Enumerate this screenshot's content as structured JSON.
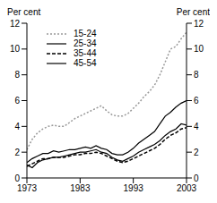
{
  "chart_data": {
    "type": "line",
    "y_label": "Per cent",
    "y2_label": "Per cent",
    "x": [
      1973,
      1974,
      1975,
      1976,
      1977,
      1978,
      1979,
      1980,
      1981,
      1982,
      1983,
      1984,
      1985,
      1986,
      1987,
      1988,
      1989,
      1990,
      1991,
      1992,
      1993,
      1994,
      1995,
      1996,
      1997,
      1998,
      1999,
      2000,
      2001,
      2002,
      2003
    ],
    "xlim": [
      1973,
      2003
    ],
    "xticks": [
      1973,
      1983,
      1993,
      2003
    ],
    "ylim": [
      0,
      12
    ],
    "yticks": [
      0,
      2,
      4,
      6,
      8,
      10,
      12
    ],
    "y2lim": [
      0,
      12
    ],
    "y2ticks": [
      0,
      2,
      4,
      6,
      8,
      10,
      12
    ],
    "legend": "upper left",
    "series": [
      {
        "name": "15-24",
        "color": "#999999",
        "line_style": "dotted",
        "values": [
          2.2,
          3.0,
          3.5,
          3.8,
          4.0,
          4.1,
          4.0,
          4.0,
          4.3,
          4.6,
          4.8,
          5.0,
          5.2,
          5.4,
          5.6,
          5.2,
          4.9,
          4.8,
          4.8,
          5.0,
          5.4,
          5.8,
          6.3,
          6.7,
          7.2,
          8.0,
          9.0,
          10.0,
          10.2,
          10.8,
          11.3
        ]
      },
      {
        "name": "25-34",
        "color": "#000000",
        "line_style": "solid",
        "values": [
          1.2,
          1.5,
          1.7,
          1.9,
          1.9,
          2.1,
          2.0,
          2.1,
          2.2,
          2.2,
          2.3,
          2.4,
          2.3,
          2.5,
          2.3,
          2.2,
          1.9,
          1.8,
          1.8,
          2.0,
          2.3,
          2.7,
          3.0,
          3.3,
          3.6,
          4.2,
          4.8,
          5.1,
          5.5,
          5.8,
          6.0
        ]
      },
      {
        "name": "35-44",
        "color": "#000000",
        "line_style": "dashed",
        "values": [
          0.9,
          1.1,
          1.3,
          1.5,
          1.5,
          1.6,
          1.6,
          1.6,
          1.7,
          1.8,
          1.8,
          1.9,
          1.9,
          2.0,
          1.9,
          1.7,
          1.5,
          1.3,
          1.2,
          1.3,
          1.5,
          1.7,
          1.9,
          2.1,
          2.3,
          2.6,
          3.0,
          3.3,
          3.5,
          3.8,
          3.9
        ]
      },
      {
        "name": "45-54",
        "color": "#000000",
        "line_style": "solid",
        "values": [
          1.0,
          0.8,
          1.2,
          1.4,
          1.5,
          1.6,
          1.6,
          1.7,
          1.8,
          1.9,
          2.0,
          2.0,
          2.1,
          2.2,
          2.0,
          1.9,
          1.6,
          1.4,
          1.3,
          1.5,
          1.7,
          2.0,
          2.2,
          2.4,
          2.6,
          2.9,
          3.3,
          3.6,
          3.8,
          4.2,
          4.1
        ]
      }
    ]
  }
}
